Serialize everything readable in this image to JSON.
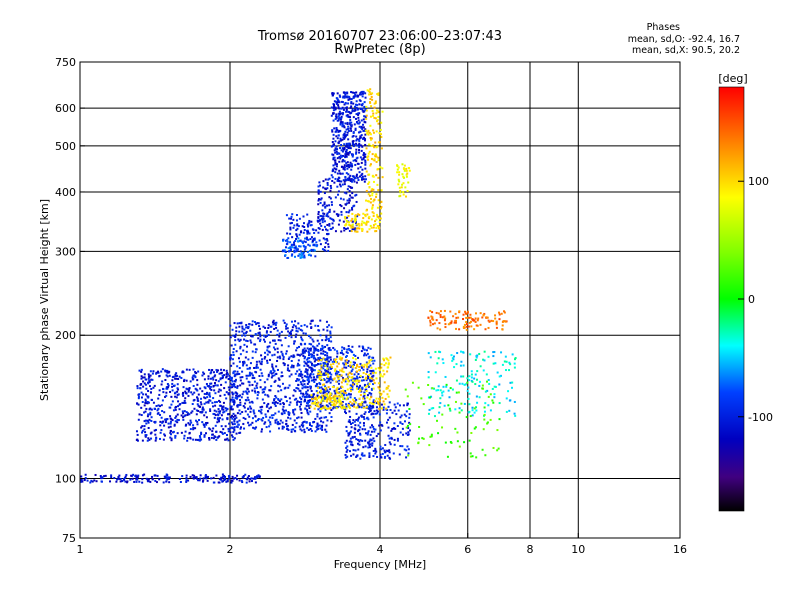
{
  "chart_data": {
    "type": "scatter",
    "title": "Tromsø 20160707 23:06:00–23:07:43",
    "subtitle": "RwPretec (8p)",
    "xlabel": "Frequency [MHz]",
    "ylabel": "Stationary phase Virtual Height [km]",
    "x_scale": "log",
    "y_scale": "log",
    "xlim": [
      1,
      16
    ],
    "ylim": [
      75,
      750
    ],
    "x_ticks": [
      1,
      2,
      4,
      6,
      8,
      10,
      16
    ],
    "y_ticks": [
      75,
      100,
      200,
      300,
      400,
      500,
      600,
      750
    ],
    "x_tick_labels": [
      "1",
      "2",
      "4",
      "6",
      "8",
      "10",
      "16"
    ],
    "y_tick_labels": [
      "75",
      "100",
      "200",
      "300",
      "400",
      "500",
      "600",
      "750"
    ],
    "grid_x": [
      1,
      2,
      4,
      6,
      8,
      10,
      16
    ],
    "grid_y": [
      100,
      200,
      300,
      400,
      500,
      600
    ],
    "stats": {
      "header": "Phases",
      "line1": "mean, sd,O: -92.4, 16.7",
      "line2": "mean, sd,X:  90.5, 20.2"
    },
    "colorbar": {
      "label": "[deg]",
      "range": [
        -180,
        180
      ],
      "ticks": [
        100,
        0,
        -100
      ],
      "tick_labels": [
        "100",
        "0",
        "-100"
      ]
    },
    "series": [
      {
        "clusters": [
          {
            "x": [
              1.0,
              2.3
            ],
            "y": [
              98,
              102
            ],
            "phase": -110,
            "count": 200
          },
          {
            "x": [
              1.3,
              2.1
            ],
            "y": [
              120,
              170
            ],
            "phase": -105,
            "count": 650
          },
          {
            "x": [
              2.0,
              3.2
            ],
            "y": [
              125,
              215
            ],
            "phase": -100,
            "count": 850
          },
          {
            "x": [
              2.8,
              3.9
            ],
            "y": [
              140,
              190
            ],
            "phase": -95,
            "count": 450
          },
          {
            "x": [
              3.4,
              4.6
            ],
            "y": [
              110,
              145
            ],
            "phase": -100,
            "count": 260
          },
          {
            "x": [
              3.2,
              3.75
            ],
            "y": [
              420,
              650
            ],
            "phase": -105,
            "count": 500
          },
          {
            "x": [
              3.0,
              3.6
            ],
            "y": [
              330,
              430
            ],
            "phase": -110,
            "count": 150
          },
          {
            "x": [
              2.55,
              3.0
            ],
            "y": [
              290,
              320
            ],
            "phase": -80,
            "count": 90
          },
          {
            "x": [
              2.6,
              3.2
            ],
            "y": [
              300,
              360
            ],
            "phase": -100,
            "count": 120
          }
        ]
      },
      {
        "clusters": [
          {
            "x": [
              3.75,
              4.05
            ],
            "y": [
              350,
              660
            ],
            "phase": 100,
            "count": 150
          },
          {
            "x": [
              3.4,
              4.0
            ],
            "y": [
              330,
              360
            ],
            "phase": 95,
            "count": 80
          },
          {
            "x": [
              4.3,
              4.6
            ],
            "y": [
              390,
              460
            ],
            "phase": 85,
            "count": 40
          },
          {
            "x": [
              3.0,
              4.2
            ],
            "y": [
              140,
              180
            ],
            "phase": 100,
            "count": 260
          },
          {
            "x": [
              2.9,
              3.4
            ],
            "y": [
              140,
              150
            ],
            "phase": 95,
            "count": 70
          }
        ]
      },
      {
        "clusters": [
          {
            "x": [
              5.0,
              7.2
            ],
            "y": [
              205,
              225
            ],
            "phase": 140,
            "count": 120
          },
          {
            "x": [
              5.0,
              7.5
            ],
            "y": [
              135,
              185
            ],
            "phase": -40,
            "count": 160
          },
          {
            "x": [
              4.5,
              7.0
            ],
            "y": [
              110,
              160
            ],
            "phase": 20,
            "count": 80
          }
        ]
      }
    ]
  }
}
